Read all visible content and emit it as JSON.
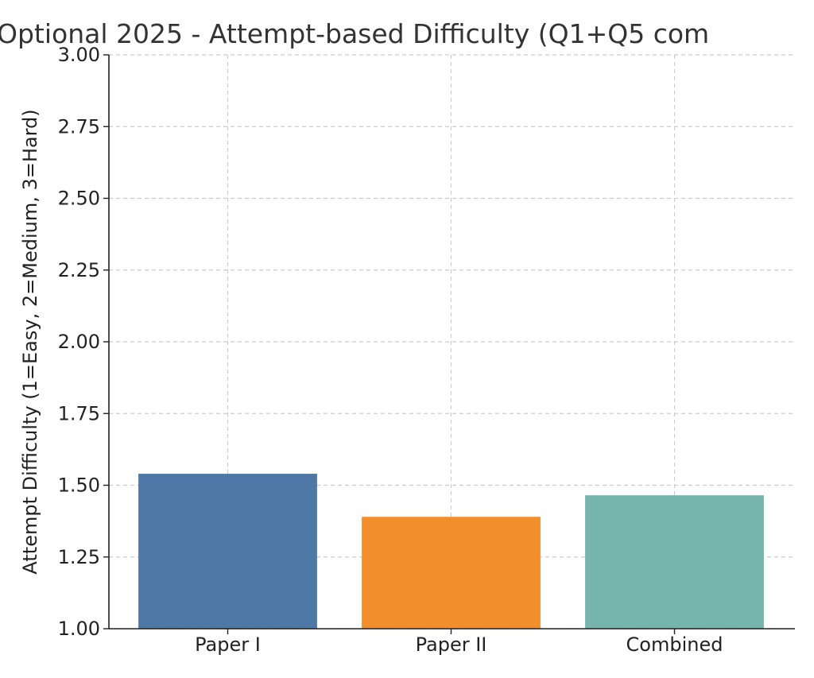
{
  "chart_data": {
    "type": "bar",
    "title": "Optional 2025 - Attempt-based Difficulty (Q1+Q5 com",
    "xlabel": "",
    "ylabel": "Attempt Difficulty (1=Easy, 2=Medium, 3=Hard)",
    "categories": [
      "Paper I",
      "Paper II",
      "Combined"
    ],
    "values": [
      1.54,
      1.39,
      1.465
    ],
    "colors": [
      "#4e78a6",
      "#f28e2c",
      "#76b5ae"
    ],
    "ylim": [
      1.0,
      3.0
    ],
    "yticks": [
      "1.00",
      "1.25",
      "1.50",
      "1.75",
      "2.00",
      "2.25",
      "2.50",
      "2.75",
      "3.00"
    ],
    "grid": true,
    "legend": "none"
  }
}
